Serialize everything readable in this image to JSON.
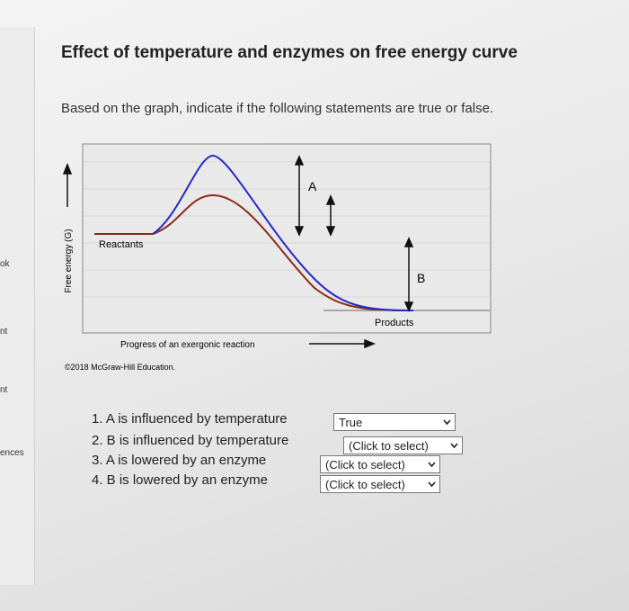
{
  "sidebar": [
    "ok",
    "nt",
    "nt",
    "ences"
  ],
  "header": {
    "title": "Effect of temperature and enzymes on free energy curve",
    "instructions": "Based on the graph, indicate if the following statements are true or false."
  },
  "figure": {
    "y_axis_label": "Free energy (G)",
    "x_axis_label": "Progress of an exergonic reaction",
    "reactants": "Reactants",
    "products": "Products",
    "label_a": "A",
    "label_b": "B",
    "credit": "©2018 McGraw-Hill Education."
  },
  "questions": [
    {
      "statement": "1. A is influenced by temperature",
      "selection": "True"
    },
    {
      "statement": "2. B is influenced by temperature",
      "selection": "(Click to select)"
    },
    {
      "statement": "3. A is lowered by an enzyme",
      "selection": "(Click to select)"
    },
    {
      "statement": "4. B is lowered by an enzyme",
      "selection": "(Click to select)"
    }
  ]
}
